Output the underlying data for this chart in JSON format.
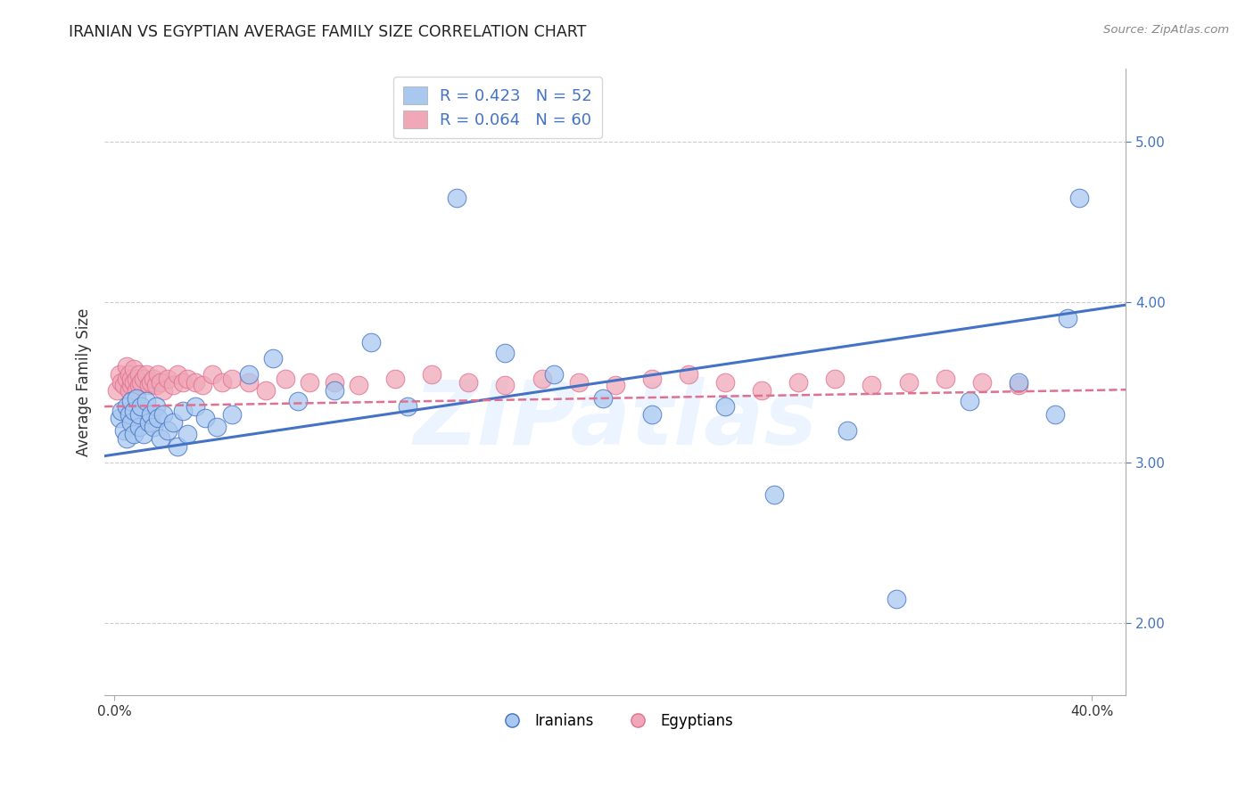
{
  "title": "IRANIAN VS EGYPTIAN AVERAGE FAMILY SIZE CORRELATION CHART",
  "source": "Source: ZipAtlas.com",
  "ylabel": "Average Family Size",
  "color_iranian": "#a8c8f0",
  "color_egyptian": "#f0a8b8",
  "color_line_iranian": "#4472c4",
  "color_line_egyptian": "#e07090",
  "watermark_text": "ZIPatlas",
  "xlim": [
    -0.004,
    0.414
  ],
  "ylim": [
    1.55,
    5.45
  ],
  "yticks": [
    2.0,
    3.0,
    4.0,
    5.0
  ],
  "xticks": [
    0.0,
    0.4
  ],
  "xticklabels": [
    "0.0%",
    "40.0%"
  ],
  "legend1_label_iranian": "R = 0.423   N = 52",
  "legend1_label_egyptian": "R = 0.064   N = 60",
  "legend2_label_iranian": "Iranians",
  "legend2_label_egyptian": "Egyptians",
  "iranian_x": [
    0.002,
    0.003,
    0.004,
    0.005,
    0.005,
    0.006,
    0.007,
    0.007,
    0.008,
    0.008,
    0.009,
    0.01,
    0.01,
    0.011,
    0.012,
    0.013,
    0.014,
    0.015,
    0.016,
    0.017,
    0.018,
    0.019,
    0.02,
    0.022,
    0.024,
    0.026,
    0.028,
    0.03,
    0.033,
    0.037,
    0.042,
    0.048,
    0.055,
    0.065,
    0.075,
    0.09,
    0.105,
    0.12,
    0.14,
    0.16,
    0.18,
    0.2,
    0.22,
    0.25,
    0.27,
    0.3,
    0.32,
    0.35,
    0.37,
    0.385,
    0.39,
    0.395
  ],
  "iranian_y": [
    3.28,
    3.32,
    3.2,
    3.35,
    3.15,
    3.3,
    3.25,
    3.38,
    3.18,
    3.32,
    3.4,
    3.22,
    3.3,
    3.35,
    3.18,
    3.38,
    3.25,
    3.3,
    3.22,
    3.35,
    3.28,
    3.15,
    3.3,
    3.2,
    3.25,
    3.1,
    3.32,
    3.18,
    3.35,
    3.28,
    3.22,
    3.3,
    3.55,
    3.65,
    3.38,
    3.45,
    3.75,
    3.35,
    4.65,
    3.68,
    3.55,
    3.4,
    3.3,
    3.35,
    2.8,
    3.2,
    2.15,
    3.38,
    3.5,
    3.3,
    3.9,
    4.65
  ],
  "egyptian_x": [
    0.001,
    0.002,
    0.003,
    0.004,
    0.005,
    0.005,
    0.006,
    0.006,
    0.007,
    0.007,
    0.008,
    0.008,
    0.009,
    0.009,
    0.01,
    0.01,
    0.011,
    0.012,
    0.013,
    0.014,
    0.015,
    0.016,
    0.017,
    0.018,
    0.019,
    0.02,
    0.022,
    0.024,
    0.026,
    0.028,
    0.03,
    0.033,
    0.036,
    0.04,
    0.044,
    0.048,
    0.055,
    0.062,
    0.07,
    0.08,
    0.09,
    0.1,
    0.115,
    0.13,
    0.145,
    0.16,
    0.175,
    0.19,
    0.205,
    0.22,
    0.235,
    0.25,
    0.265,
    0.28,
    0.295,
    0.31,
    0.325,
    0.34,
    0.355,
    0.37
  ],
  "egyptian_y": [
    3.45,
    3.55,
    3.5,
    3.48,
    3.52,
    3.6,
    3.45,
    3.55,
    3.48,
    3.52,
    3.5,
    3.58,
    3.45,
    3.52,
    3.48,
    3.55,
    3.5,
    3.52,
    3.55,
    3.48,
    3.5,
    3.52,
    3.48,
    3.55,
    3.5,
    3.45,
    3.52,
    3.48,
    3.55,
    3.5,
    3.52,
    3.5,
    3.48,
    3.55,
    3.5,
    3.52,
    3.5,
    3.45,
    3.52,
    3.5,
    3.5,
    3.48,
    3.52,
    3.55,
    3.5,
    3.48,
    3.52,
    3.5,
    3.48,
    3.52,
    3.55,
    3.5,
    3.45,
    3.5,
    3.52,
    3.48,
    3.5,
    3.52,
    3.5,
    3.48
  ]
}
